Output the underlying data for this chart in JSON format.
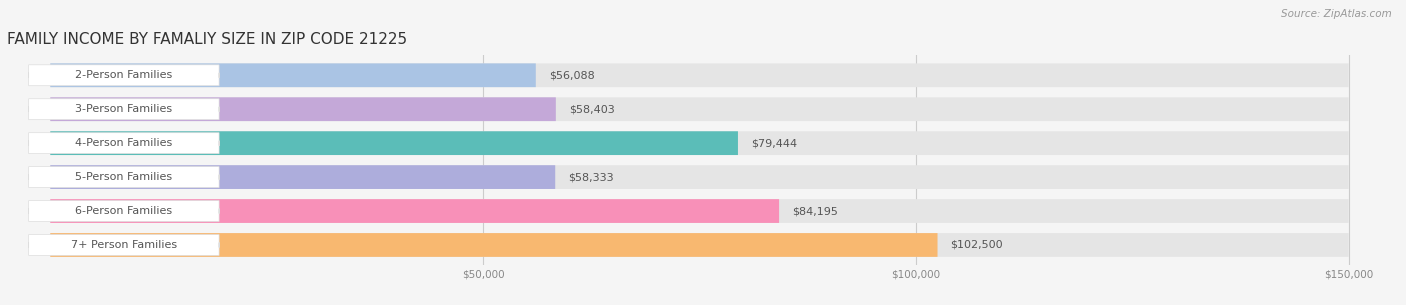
{
  "title": "FAMILY INCOME BY FAMALIY SIZE IN ZIP CODE 21225",
  "source": "Source: ZipAtlas.com",
  "categories": [
    "2-Person Families",
    "3-Person Families",
    "4-Person Families",
    "5-Person Families",
    "6-Person Families",
    "7+ Person Families"
  ],
  "values": [
    56088,
    58403,
    79444,
    58333,
    84195,
    102500
  ],
  "bar_colors": [
    "#aac4e4",
    "#c4a8d8",
    "#5bbdb8",
    "#adaddc",
    "#f890b8",
    "#f8b870"
  ],
  "value_labels": [
    "$56,088",
    "$58,403",
    "$79,444",
    "$58,333",
    "$84,195",
    "$102,500"
  ],
  "xlim_left": -5000,
  "xlim_right": 155000,
  "xmax": 150000,
  "xticks": [
    50000,
    100000,
    150000
  ],
  "xticklabels": [
    "$50,000",
    "$100,000",
    "$150,000"
  ],
  "bg_color": "#f5f5f5",
  "bar_bg_color": "#e5e5e5",
  "title_fontsize": 11,
  "label_fontsize": 8,
  "value_fontsize": 8,
  "source_fontsize": 7.5
}
